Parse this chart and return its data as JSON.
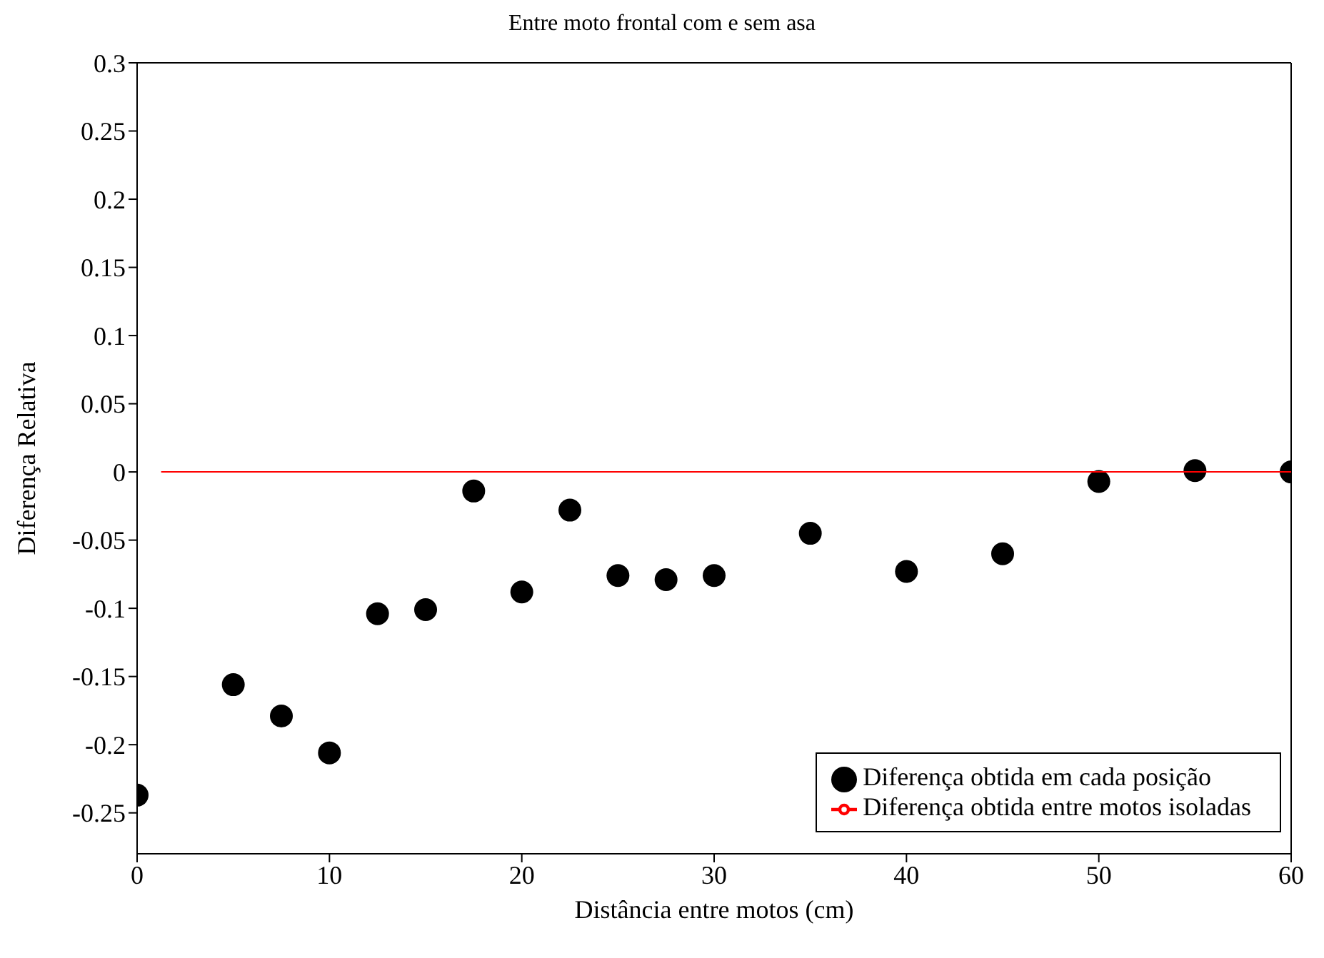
{
  "chart_data": {
    "type": "scatter",
    "title": "Entre moto frontal com e sem asa",
    "xlabel": "Distância entre motos (cm)",
    "ylabel": "Diferença Relativa",
    "xlim": [
      0,
      60
    ],
    "xticks": [
      0,
      10,
      20,
      30,
      40,
      50,
      60
    ],
    "ylim": [
      -0.28,
      0.3
    ],
    "yticks": [
      -0.25,
      -0.2,
      -0.15,
      -0.1,
      -0.05,
      0,
      0.05,
      0.1,
      0.15,
      0.2,
      0.25,
      0.3
    ],
    "grid": false,
    "legend": "bottom right",
    "series": [
      {
        "name": "Diferença obtida em cada posição",
        "marker": "circle",
        "color": "#000000",
        "x": [
          0,
          5,
          7.5,
          10,
          12.5,
          15,
          17.5,
          20,
          22.5,
          25,
          27.5,
          30,
          35,
          40,
          45,
          50,
          55,
          60
        ],
        "values": [
          -0.237,
          -0.156,
          -0.179,
          -0.206,
          -0.104,
          -0.101,
          -0.014,
          -0.088,
          -0.028,
          -0.076,
          -0.079,
          -0.076,
          -0.045,
          -0.073,
          -0.06,
          -0.007,
          0.001,
          0
        ]
      },
      {
        "name": "Diferença obtida entre motos isoladas",
        "type": "line",
        "marker": "none",
        "color": "#ff0000",
        "x": [
          1.25,
          60
        ],
        "values": [
          0,
          0
        ]
      }
    ]
  }
}
